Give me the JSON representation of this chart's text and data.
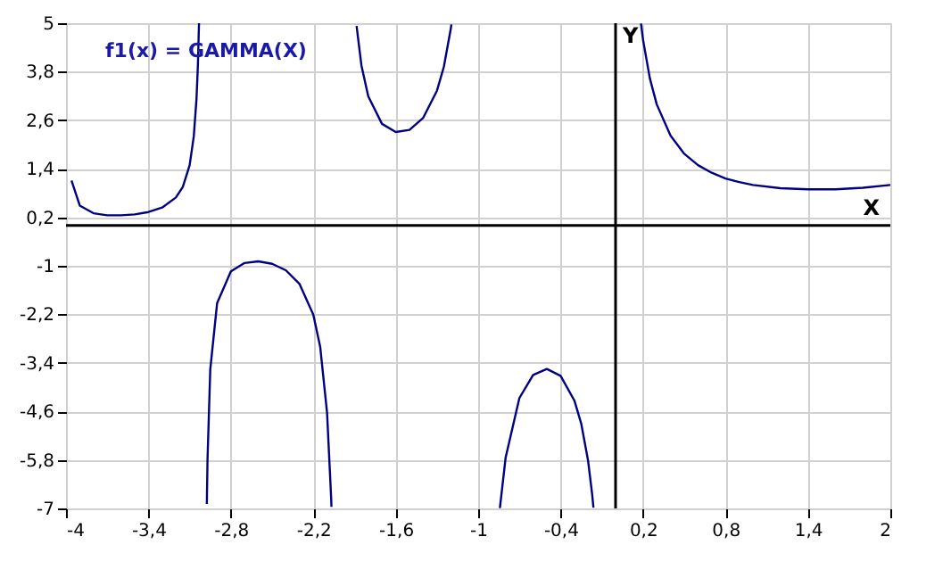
{
  "chart_data": {
    "type": "line",
    "title": "f1(x) = GAMMA(X)",
    "xlim": [
      -4,
      2
    ],
    "ylim": [
      -7,
      5
    ],
    "xticks": [
      -4,
      {
        "value": -3.4,
        "label": "-3,4"
      },
      {
        "value": -2.8,
        "label": "-2,8"
      },
      {
        "value": -2.2,
        "label": "-2,2"
      },
      {
        "value": -1.6,
        "label": "-1,6"
      },
      -1,
      {
        "value": -0.4,
        "label": "-0,4"
      },
      {
        "value": 0.2,
        "label": "0,2"
      },
      {
        "value": 0.8,
        "label": "0,8"
      },
      {
        "value": 1.4,
        "label": "1,4"
      },
      2
    ],
    "yticks": [
      5,
      {
        "value": 3.8,
        "label": "3,8"
      },
      {
        "value": 2.6,
        "label": "2,6"
      },
      {
        "value": 1.4,
        "label": "1,4"
      },
      {
        "value": 0.2,
        "label": "0,2"
      },
      -1,
      {
        "value": -2.2,
        "label": "-2,2"
      },
      {
        "value": -3.4,
        "label": "-3,4"
      },
      {
        "value": -4.6,
        "label": "-4,6"
      },
      {
        "value": -5.8,
        "label": "-5,8"
      },
      -7
    ],
    "grid": true,
    "marker": "none",
    "line_style": "solid",
    "ref_lines": [
      {
        "axis": "x",
        "value": 0,
        "label": "Y",
        "color": "#000000"
      },
      {
        "axis": "y",
        "value": 0,
        "label": "X",
        "color": "#000000"
      }
    ],
    "series": [
      {
        "color": "#000080",
        "x": [
          -3.96,
          -3.9,
          -3.8,
          -3.7,
          -3.6,
          -3.5,
          -3.4,
          -3.3,
          -3.2,
          -3.15,
          -3.1,
          -3.07,
          -3.05,
          -3.04,
          -3.032
        ],
        "values": [
          1.11,
          0.49,
          0.3,
          0.25,
          0.25,
          0.27,
          0.33,
          0.44,
          0.69,
          0.95,
          1.49,
          2.2,
          3.14,
          3.97,
          5.0
        ]
      },
      {
        "color": "#000080",
        "x": [
          -2.975,
          -2.97,
          -2.95,
          -2.9,
          -2.8,
          -2.7,
          -2.6,
          -2.5,
          -2.4,
          -2.3,
          -2.2,
          -2.15,
          -2.1,
          -2.07,
          -2.068
        ],
        "values": [
          -6.89,
          -5.78,
          -3.56,
          -1.92,
          -1.14,
          -0.93,
          -0.89,
          -0.95,
          -1.11,
          -1.45,
          -2.21,
          -3.0,
          -4.63,
          -6.75,
          -6.96
        ]
      },
      {
        "color": "#000080",
        "x": [
          -1.885,
          -1.85,
          -1.8,
          -1.7,
          -1.6,
          -1.5,
          -1.4,
          -1.3,
          -1.25,
          -1.2,
          -1.195
        ],
        "values": [
          4.93,
          3.96,
          3.19,
          2.51,
          2.31,
          2.36,
          2.66,
          3.33,
          3.92,
          4.85,
          4.97
        ]
      },
      {
        "color": "#000080",
        "x": [
          -0.842,
          -0.8,
          -0.7,
          -0.6,
          -0.5,
          -0.4,
          -0.3,
          -0.25,
          -0.2,
          -0.17,
          -0.161
        ],
        "values": [
          -6.99,
          -5.74,
          -4.27,
          -3.7,
          -3.55,
          -3.72,
          -4.33,
          -4.9,
          -5.82,
          -6.66,
          -6.98
        ]
      },
      {
        "color": "#000080",
        "x": [
          0.185,
          0.2,
          0.25,
          0.3,
          0.4,
          0.5,
          0.6,
          0.7,
          0.8,
          0.9,
          1,
          1.2,
          1.4,
          1.46,
          1.6,
          1.8,
          2
        ],
        "values": [
          4.99,
          4.59,
          3.63,
          2.99,
          2.22,
          1.77,
          1.49,
          1.3,
          1.16,
          1.07,
          1,
          0.92,
          0.89,
          0.89,
          0.89,
          0.93,
          1
        ]
      }
    ]
  }
}
